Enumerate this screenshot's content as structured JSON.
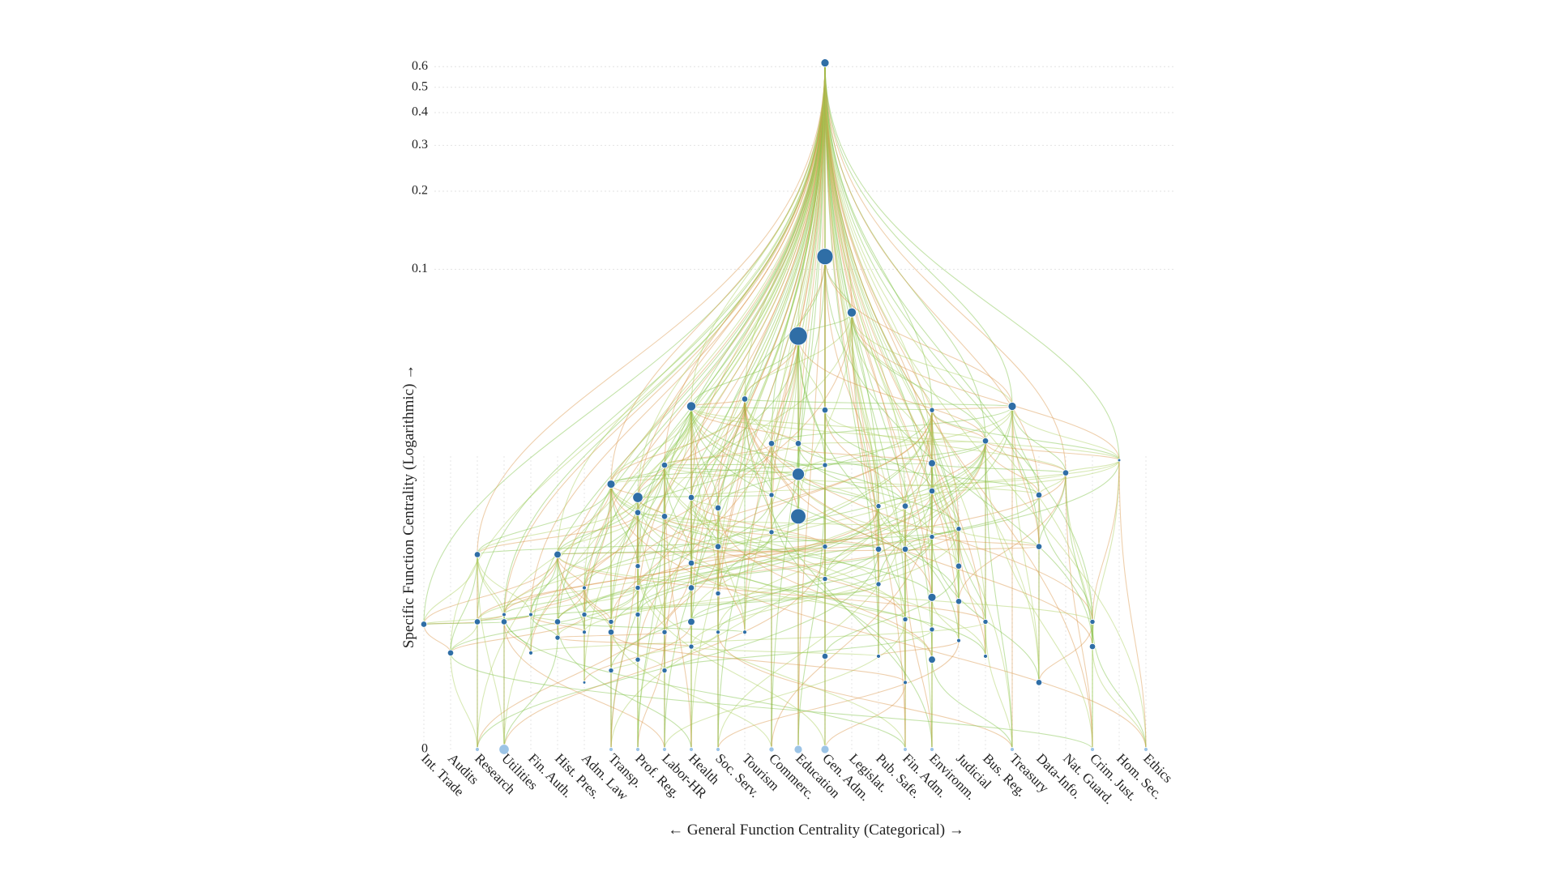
{
  "chart_data": {
    "type": "hierarchical-network",
    "y_axis_label": "Specific Function Centrality (Logarithmic) →",
    "x_axis_label": "← General Function Centrality (Categorical) →",
    "y_scale": "log",
    "ylim": [
      0,
      0.65
    ],
    "yticks": [
      0,
      0.1,
      0.2,
      0.3,
      0.4,
      0.5,
      0.6
    ],
    "grid": true,
    "node_color": "#2f6ea6",
    "link_colors": [
      "#7cc242",
      "#a8cf5a",
      "#d99448"
    ],
    "categories": [
      "Int. Trade",
      "Audits",
      "Research",
      "Utilities",
      "Fin. Auth.",
      "Hist. Pres.",
      "Adm. Law",
      "Transp.",
      "Prof. Reg.",
      "Labor-HR",
      "Health",
      "Soc. Serv.",
      "Tourism",
      "Commerc.",
      "Education",
      "Gen. Adm.",
      "Legislat.",
      "Pub. Safe.",
      "Fin. Adm.",
      "Environm.",
      "Judicial",
      "Bus. Reg.",
      "Treasury",
      "Data-Info.",
      "Nat. Guard.",
      "Crim. Just.",
      "Hom. Sec.",
      "Ethics"
    ],
    "nodes": [
      {
        "c": 0,
        "v": 0.003,
        "r": 3
      },
      {
        "c": 1,
        "v": 0.002,
        "r": 3
      },
      {
        "c": 2,
        "v": 0.0068,
        "r": 3
      },
      {
        "c": 2,
        "v": 0.0031,
        "r": 3
      },
      {
        "c": 2,
        "v": 0,
        "r": 2
      },
      {
        "c": 3,
        "v": 0.0031,
        "r": 3
      },
      {
        "c": 3,
        "v": 0.0034,
        "r": 2
      },
      {
        "c": 3,
        "v": 0,
        "r": 5
      },
      {
        "c": 4,
        "v": 0.0034,
        "r": 2
      },
      {
        "c": 4,
        "v": 0.002,
        "r": 2
      },
      {
        "c": 5,
        "v": 0.0068,
        "r": 3.5
      },
      {
        "c": 5,
        "v": 0.0031,
        "r": 3
      },
      {
        "c": 5,
        "v": 0.0025,
        "r": 2.5
      },
      {
        "c": 6,
        "v": 0.0047,
        "r": 2
      },
      {
        "c": 6,
        "v": 0.0034,
        "r": 2.5
      },
      {
        "c": 6,
        "v": 0.0027,
        "r": 2
      },
      {
        "c": 6,
        "v": 0.0012,
        "r": 1.5
      },
      {
        "c": 7,
        "v": 0.0139,
        "r": 4
      },
      {
        "c": 7,
        "v": 0.0031,
        "r": 2.5
      },
      {
        "c": 7,
        "v": 0.0027,
        "r": 3
      },
      {
        "c": 7,
        "v": 0.0015,
        "r": 2.5
      },
      {
        "c": 7,
        "v": 0,
        "r": 2
      },
      {
        "c": 8,
        "v": 0.0122,
        "r": 5
      },
      {
        "c": 8,
        "v": 0.0105,
        "r": 3
      },
      {
        "c": 8,
        "v": 0.006,
        "r": 2.5
      },
      {
        "c": 8,
        "v": 0.0047,
        "r": 2.5
      },
      {
        "c": 8,
        "v": 0.0034,
        "r": 2.5
      },
      {
        "c": 8,
        "v": 0.0018,
        "r": 2.5
      },
      {
        "c": 8,
        "v": 0,
        "r": 2
      },
      {
        "c": 9,
        "v": 0.0167,
        "r": 3
      },
      {
        "c": 9,
        "v": 0.0101,
        "r": 3
      },
      {
        "c": 9,
        "v": 0.0027,
        "r": 2.5
      },
      {
        "c": 9,
        "v": 0.0015,
        "r": 2.5
      },
      {
        "c": 9,
        "v": 0,
        "r": 2
      },
      {
        "c": 10,
        "v": 0.029,
        "r": 4.5
      },
      {
        "c": 10,
        "v": 0.0122,
        "r": 3
      },
      {
        "c": 10,
        "v": 0.0062,
        "r": 3
      },
      {
        "c": 10,
        "v": 0.0047,
        "r": 3
      },
      {
        "c": 10,
        "v": 0.0031,
        "r": 3.5
      },
      {
        "c": 10,
        "v": 0.0022,
        "r": 2.5
      },
      {
        "c": 10,
        "v": 0,
        "r": 2
      },
      {
        "c": 11,
        "v": 0.011,
        "r": 3
      },
      {
        "c": 11,
        "v": 0.0074,
        "r": 3
      },
      {
        "c": 11,
        "v": 0.0044,
        "r": 2.5
      },
      {
        "c": 11,
        "v": 0.0027,
        "r": 2
      },
      {
        "c": 11,
        "v": 0,
        "r": 2
      },
      {
        "c": 12,
        "v": 0.031,
        "r": 3
      },
      {
        "c": 12,
        "v": 0.0027,
        "r": 2
      },
      {
        "c": 13,
        "v": 0.0205,
        "r": 3
      },
      {
        "c": 13,
        "v": 0.0125,
        "r": 2.5
      },
      {
        "c": 13,
        "v": 0.0086,
        "r": 2.5
      },
      {
        "c": 13,
        "v": 0,
        "r": 2.5
      },
      {
        "c": 14,
        "v": 0.055,
        "r": 9
      },
      {
        "c": 14,
        "v": 0.0153,
        "r": 6
      },
      {
        "c": 14,
        "v": 0.0101,
        "r": 7.5
      },
      {
        "c": 14,
        "v": 0.0205,
        "r": 3
      },
      {
        "c": 14,
        "v": 0,
        "r": 4
      },
      {
        "c": 15,
        "v": 0.62,
        "r": 4
      },
      {
        "c": 15,
        "v": 0.112,
        "r": 8
      },
      {
        "c": 15,
        "v": 0.028,
        "r": 3
      },
      {
        "c": 15,
        "v": 0.0167,
        "r": 2.5
      },
      {
        "c": 15,
        "v": 0.0074,
        "r": 2.5
      },
      {
        "c": 15,
        "v": 0.0052,
        "r": 2.5
      },
      {
        "c": 15,
        "v": 0.0019,
        "r": 3
      },
      {
        "c": 15,
        "v": 0,
        "r": 4
      },
      {
        "c": 16,
        "v": 0.068,
        "r": 4.5
      },
      {
        "c": 17,
        "v": 0.0112,
        "r": 2.5
      },
      {
        "c": 17,
        "v": 0.0072,
        "r": 3
      },
      {
        "c": 17,
        "v": 0.0049,
        "r": 2.5
      },
      {
        "c": 17,
        "v": 0.0019,
        "r": 2
      },
      {
        "c": 18,
        "v": 0.0112,
        "r": 3
      },
      {
        "c": 18,
        "v": 0.0072,
        "r": 3
      },
      {
        "c": 18,
        "v": 0.0032,
        "r": 2.5
      },
      {
        "c": 18,
        "v": 0.0012,
        "r": 2
      },
      {
        "c": 18,
        "v": 0,
        "r": 2
      },
      {
        "c": 19,
        "v": 0.028,
        "r": 2.5
      },
      {
        "c": 19,
        "v": 0.017,
        "r": 3.5
      },
      {
        "c": 19,
        "v": 0.013,
        "r": 3
      },
      {
        "c": 19,
        "v": 0.0082,
        "r": 2.5
      },
      {
        "c": 19,
        "v": 0.0042,
        "r": 4
      },
      {
        "c": 19,
        "v": 0.0028,
        "r": 2.5
      },
      {
        "c": 19,
        "v": 0.0018,
        "r": 3.5
      },
      {
        "c": 19,
        "v": 0,
        "r": 2
      },
      {
        "c": 20,
        "v": 0.0089,
        "r": 2.5
      },
      {
        "c": 20,
        "v": 0.006,
        "r": 3
      },
      {
        "c": 20,
        "v": 0.004,
        "r": 3
      },
      {
        "c": 20,
        "v": 0.0024,
        "r": 2
      },
      {
        "c": 21,
        "v": 0.021,
        "r": 3
      },
      {
        "c": 21,
        "v": 0.0031,
        "r": 2.5
      },
      {
        "c": 21,
        "v": 0.0019,
        "r": 2
      },
      {
        "c": 22,
        "v": 0.029,
        "r": 4
      },
      {
        "c": 22,
        "v": 0,
        "r": 2
      },
      {
        "c": 23,
        "v": 0.0125,
        "r": 3
      },
      {
        "c": 23,
        "v": 0.0074,
        "r": 3
      },
      {
        "c": 23,
        "v": 0.0012,
        "r": 3
      },
      {
        "c": 24,
        "v": 0.0155,
        "r": 3
      },
      {
        "c": 25,
        "v": 0.0031,
        "r": 2.5
      },
      {
        "c": 25,
        "v": 0.0022,
        "r": 3
      },
      {
        "c": 25,
        "v": 0,
        "r": 2
      },
      {
        "c": 26,
        "v": 0.0175,
        "r": 1.5
      },
      {
        "c": 27,
        "v": 0,
        "r": 2
      }
    ]
  }
}
